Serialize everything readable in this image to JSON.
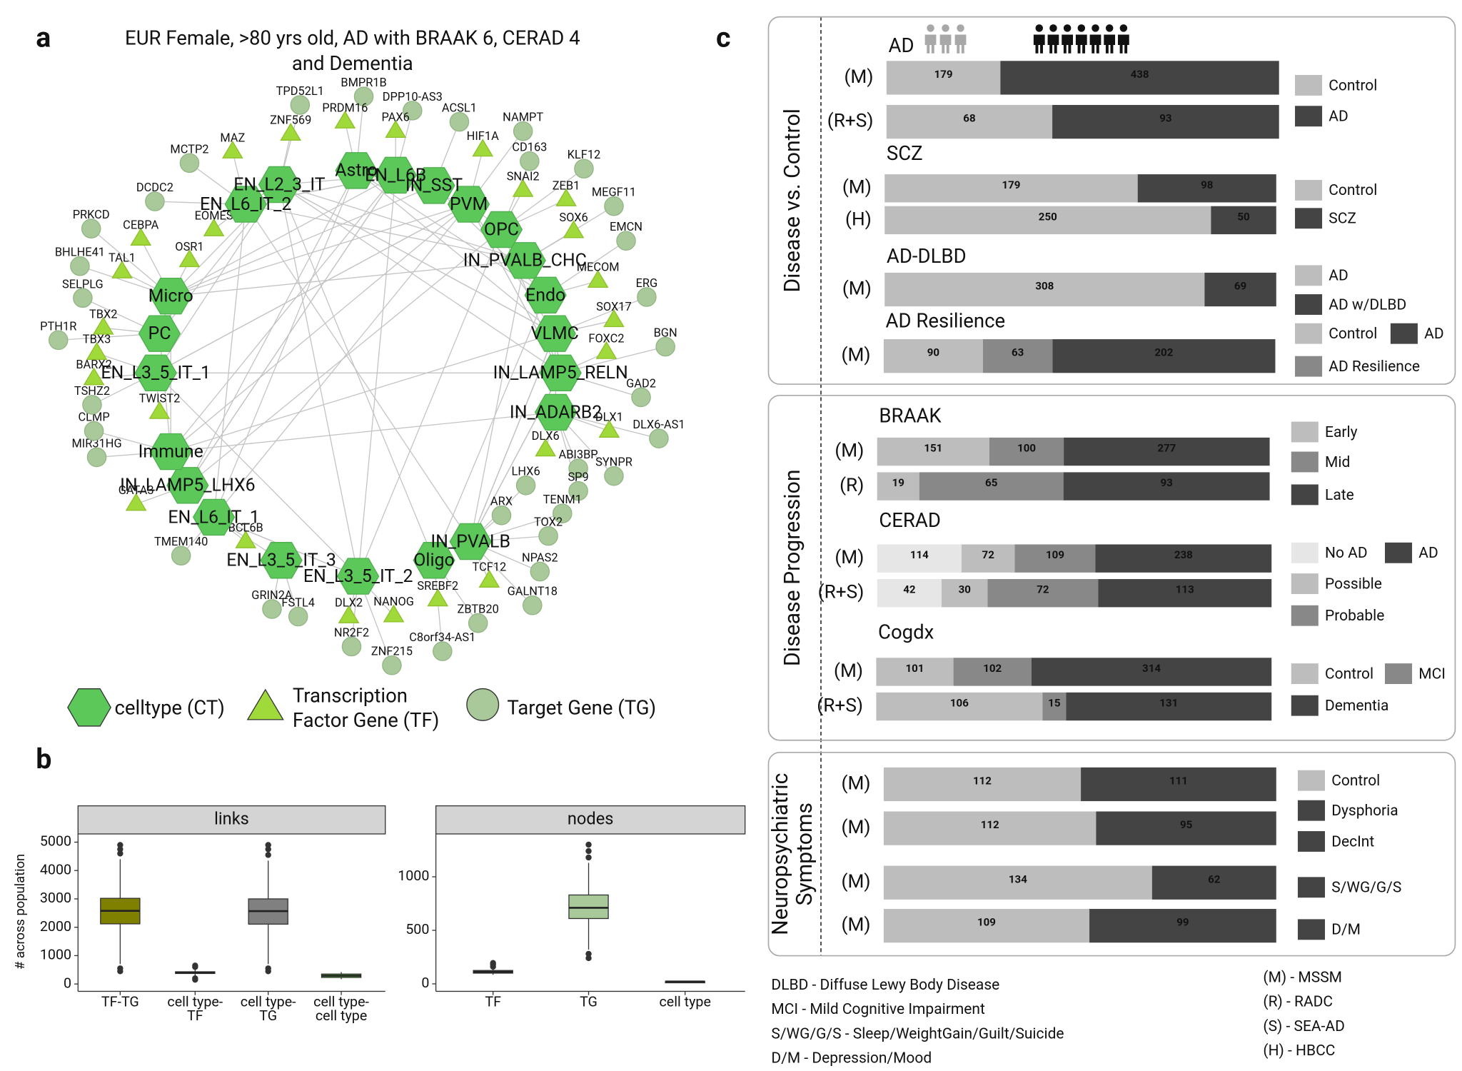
{
  "panels": {
    "a": {
      "letter": "a",
      "title": [
        "EUR Female, >80 yrs old, AD with BRAAK 6, CERAD 4",
        "and Dementia"
      ],
      "colors": {
        "CT": "#5cc85a",
        "TF": "#a0d93a",
        "TG": "#a9c99b"
      },
      "celltypes": [
        "EN_L6_IT_2",
        "EN_L2_3_IT",
        "Astro",
        "EN_L6B",
        "IN_SST",
        "PVM",
        "OPC",
        "IN_PVALB_CHC",
        "Endo",
        "VLMC",
        "IN_LAMP5_RELN",
        "IN_ADARB2",
        "IN_PVALB",
        "Oligo",
        "EN_L3_5_IT_2",
        "EN_L3_5_IT_3",
        "EN_L6_IT_1",
        "IN_LAMP5_LHX6",
        "Immune",
        "EN_L3_5_IT_1",
        "PC",
        "Micro"
      ],
      "genes": [
        {
          "label": "TPD52L1",
          "kind": "TG"
        },
        {
          "label": "BMPR1B",
          "kind": "TG"
        },
        {
          "label": "PRDM16",
          "kind": "TF"
        },
        {
          "label": "DPP10-AS3",
          "kind": "TG"
        },
        {
          "label": "PAX6",
          "kind": "TF"
        },
        {
          "label": "ACSL1",
          "kind": "TG"
        },
        {
          "label": "HIF1A",
          "kind": "TF"
        },
        {
          "label": "NAMPT",
          "kind": "TG"
        },
        {
          "label": "CD163",
          "kind": "TG"
        },
        {
          "label": "SNAI2",
          "kind": "TF"
        },
        {
          "label": "KLF12",
          "kind": "TG"
        },
        {
          "label": "ZEB1",
          "kind": "TF"
        },
        {
          "label": "MEGF11",
          "kind": "TG"
        },
        {
          "label": "SOX6",
          "kind": "TF"
        },
        {
          "label": "EMCN",
          "kind": "TG"
        },
        {
          "label": "MECOM",
          "kind": "TF"
        },
        {
          "label": "ERG",
          "kind": "TG"
        },
        {
          "label": "SOX17",
          "kind": "TF"
        },
        {
          "label": "FOXC2",
          "kind": "TF"
        },
        {
          "label": "BGN",
          "kind": "TG"
        },
        {
          "label": "GAD2",
          "kind": "TG"
        },
        {
          "label": "DLX1",
          "kind": "TF"
        },
        {
          "label": "DLX6-AS1",
          "kind": "TG"
        },
        {
          "label": "DLX6",
          "kind": "TF"
        },
        {
          "label": "ABI3BP",
          "kind": "TG"
        },
        {
          "label": "SYNPR",
          "kind": "TG"
        },
        {
          "label": "LHX6",
          "kind": "TG"
        },
        {
          "label": "SP9",
          "kind": "TG"
        },
        {
          "label": "TENM1",
          "kind": "TG"
        },
        {
          "label": "ARX",
          "kind": "TG"
        },
        {
          "label": "TOX2",
          "kind": "TG"
        },
        {
          "label": "NPAS2",
          "kind": "TG"
        },
        {
          "label": "TCF12",
          "kind": "TF"
        },
        {
          "label": "GALNT18",
          "kind": "TG"
        },
        {
          "label": "SREBF2",
          "kind": "TF"
        },
        {
          "label": "ZBTB20",
          "kind": "TG"
        },
        {
          "label": "NANOG",
          "kind": "TF"
        },
        {
          "label": "C8orf34-AS1",
          "kind": "TG"
        },
        {
          "label": "ZNF215",
          "kind": "TG"
        },
        {
          "label": "DLX2",
          "kind": "TF"
        },
        {
          "label": "NR2F2",
          "kind": "TG"
        },
        {
          "label": "FSTL4",
          "kind": "TG"
        },
        {
          "label": "GRIN2A",
          "kind": "TG"
        },
        {
          "label": "BCL6B",
          "kind": "TF"
        },
        {
          "label": "TMEM140",
          "kind": "TG"
        },
        {
          "label": "GATA3",
          "kind": "TF"
        },
        {
          "label": "MIR31HG",
          "kind": "TG"
        },
        {
          "label": "CLMP",
          "kind": "TG"
        },
        {
          "label": "TWIST2",
          "kind": "TF"
        },
        {
          "label": "TSHZ2",
          "kind": "TG"
        },
        {
          "label": "BARX2",
          "kind": "TF"
        },
        {
          "label": "TBX3",
          "kind": "TF"
        },
        {
          "label": "PTH1R",
          "kind": "TG"
        },
        {
          "label": "TBX2",
          "kind": "TF"
        },
        {
          "label": "SELPLG",
          "kind": "TG"
        },
        {
          "label": "TAL1",
          "kind": "TF"
        },
        {
          "label": "BHLHE41",
          "kind": "TG"
        },
        {
          "label": "PRKCD",
          "kind": "TG"
        },
        {
          "label": "CEBPA",
          "kind": "TF"
        },
        {
          "label": "OSR1",
          "kind": "TF"
        },
        {
          "label": "EOMES",
          "kind": "TF"
        },
        {
          "label": "DCDC2",
          "kind": "TG"
        },
        {
          "label": "MCTP2",
          "kind": "TG"
        },
        {
          "label": "MAZ",
          "kind": "TF"
        },
        {
          "label": "ZNF569",
          "kind": "TF"
        }
      ],
      "legend": [
        {
          "kind": "CT",
          "label": [
            "celltype (CT)"
          ]
        },
        {
          "kind": "TF",
          "label": [
            "Transcription",
            "Factor Gene (TF)"
          ]
        },
        {
          "kind": "TG",
          "label": [
            "Target Gene (TG)"
          ]
        }
      ]
    },
    "b": {
      "letter": "b",
      "ylabel": "# across population",
      "facets": [
        {
          "name": "links",
          "ylim": [
            -260,
            5290
          ],
          "yticks": [
            0,
            1000,
            2000,
            3000,
            4000,
            5000
          ],
          "boxes": [
            {
              "category": [
                "TF-TG"
              ],
              "color": "#7f7f00",
              "min": 700,
              "q1": 2120,
              "median": 2580,
              "q3": 3020,
              "max": 4400,
              "outliers": [
                450,
                550,
                4600,
                4750,
                4900
              ]
            },
            {
              "category": [
                "cell type-",
                "TF"
              ],
              "color": "#4d4d4d",
              "min": 260,
              "q1": 370,
              "median": 400,
              "q3": 430,
              "max": 540,
              "outliers": [
                150,
                200,
                600,
                650
              ]
            },
            {
              "category": [
                "cell type-",
                "TG"
              ],
              "color": "#808080",
              "min": 700,
              "q1": 2110,
              "median": 2570,
              "q3": 3000,
              "max": 4350,
              "outliers": [
                450,
                550,
                4550,
                4750,
                4900
              ]
            },
            {
              "category": [
                "cell type-",
                "cell type"
              ],
              "color": "#5ecf3a",
              "min": 170,
              "q1": 230,
              "median": 290,
              "q3": 350,
              "max": 420,
              "outliers": []
            }
          ]
        },
        {
          "name": "nodes",
          "ylim": [
            -70,
            1400
          ],
          "yticks": [
            0,
            500,
            1000
          ],
          "boxes": [
            {
              "category": [
                "TF"
              ],
              "color": "#4d4d4d",
              "min": 85,
              "q1": 100,
              "median": 112,
              "q3": 125,
              "max": 145,
              "outliers": [
                160,
                180,
                195
              ]
            },
            {
              "category": [
                "TG"
              ],
              "color": "#a9c99b",
              "min": 320,
              "q1": 610,
              "median": 710,
              "q3": 830,
              "max": 1130,
              "outliers": [
                240,
                280,
                1180,
                1240,
                1300
              ]
            },
            {
              "category": [
                "cell type"
              ],
              "color": "#444444",
              "min": 20,
              "q1": 21,
              "median": 22,
              "q3": 23,
              "max": 24,
              "outliers": []
            }
          ]
        }
      ]
    },
    "c": {
      "letter": "c",
      "sections": [
        {
          "title": [
            "Disease vs. Control"
          ],
          "groups": [
            {
              "name": "AD",
              "colors": [
                "#bdbdbd",
                "#444444"
              ],
              "bars": [
                {
                  "cohort": "(M)",
                  "values": [
                    179,
                    438
                  ]
                },
                {
                  "cohort": "(R+S)",
                  "values": [
                    68,
                    93
                  ]
                }
              ],
              "legend": [
                {
                  "label": "Control",
                  "color": "#bdbdbd"
                },
                {
                  "label": "AD",
                  "color": "#444444"
                }
              ]
            },
            {
              "name": "SCZ",
              "colors": [
                "#bdbdbd",
                "#444444"
              ],
              "bars": [
                {
                  "cohort": "(M)",
                  "values": [
                    179,
                    98
                  ]
                },
                {
                  "cohort": "(H)",
                  "values": [
                    250,
                    50
                  ]
                }
              ],
              "legend": [
                {
                  "label": "Control",
                  "color": "#bdbdbd"
                },
                {
                  "label": "SCZ",
                  "color": "#444444"
                }
              ]
            },
            {
              "name": "AD-DLBD",
              "colors": [
                "#bdbdbd",
                "#444444"
              ],
              "bars": [
                {
                  "cohort": "(M)",
                  "values": [
                    308,
                    69
                  ]
                }
              ],
              "legend": [
                {
                  "label": "AD",
                  "color": "#bdbdbd"
                },
                {
                  "label": "AD w/DLBD",
                  "color": "#444444"
                }
              ]
            },
            {
              "name": "AD Resilience",
              "colors": [
                "#bdbdbd",
                "#888888",
                "#444444"
              ],
              "bars": [
                {
                  "cohort": "(M)",
                  "values": [
                    90,
                    63,
                    202
                  ]
                }
              ],
              "legend": [
                {
                  "label": "Control",
                  "color": "#bdbdbd"
                },
                {
                  "label": "AD",
                  "color": "#444444"
                },
                {
                  "label": "AD Resilience",
                  "color": "#888888"
                }
              ]
            }
          ]
        },
        {
          "title": [
            "Disease Progression"
          ],
          "groups": [
            {
              "name": "BRAAK",
              "colors": [
                "#bdbdbd",
                "#888888",
                "#444444"
              ],
              "bars": [
                {
                  "cohort": "(M)",
                  "values": [
                    151,
                    100,
                    277
                  ]
                },
                {
                  "cohort": "(R)",
                  "values": [
                    19,
                    65,
                    93
                  ]
                }
              ],
              "legend": [
                {
                  "label": "Early",
                  "color": "#bdbdbd"
                },
                {
                  "label": "Mid",
                  "color": "#888888"
                },
                {
                  "label": "Late",
                  "color": "#444444"
                }
              ]
            },
            {
              "name": "CERAD",
              "colors": [
                "#e6e6e6",
                "#bdbdbd",
                "#888888",
                "#444444"
              ],
              "bars": [
                {
                  "cohort": "(M)",
                  "values": [
                    114,
                    72,
                    109,
                    238
                  ]
                },
                {
                  "cohort": "(R+S)",
                  "values": [
                    42,
                    30,
                    72,
                    113
                  ]
                }
              ],
              "legend": [
                {
                  "label": "No AD",
                  "color": "#e6e6e6"
                },
                {
                  "label": "AD",
                  "color": "#444444"
                },
                {
                  "label": "Possible",
                  "color": "#bdbdbd"
                },
                {
                  "label": "Probable",
                  "color": "#888888"
                }
              ]
            },
            {
              "name": "Cogdx",
              "colors": [
                "#bdbdbd",
                "#888888",
                "#444444"
              ],
              "bars": [
                {
                  "cohort": "(M)",
                  "values": [
                    101,
                    102,
                    314
                  ]
                },
                {
                  "cohort": "(R+S)",
                  "values": [
                    106,
                    15,
                    131
                  ]
                }
              ],
              "legend": [
                {
                  "label": "Control",
                  "color": "#bdbdbd"
                },
                {
                  "label": "MCI",
                  "color": "#888888"
                },
                {
                  "label": "Dementia",
                  "color": "#444444"
                }
              ]
            }
          ]
        },
        {
          "title": [
            "Neuropsychiatric",
            "Symptoms"
          ],
          "groups": [
            {
              "colors": [
                "#bdbdbd",
                "#444444"
              ],
              "bars": [
                {
                  "cohort": "(M)",
                  "values": [
                    112,
                    111
                  ]
                },
                {
                  "cohort": "(M)",
                  "values": [
                    112,
                    95
                  ]
                },
                {
                  "cohort": "(M)",
                  "values": [
                    134,
                    62
                  ]
                },
                {
                  "cohort": "(M)",
                  "values": [
                    109,
                    99
                  ]
                }
              ],
              "legend": [
                {
                  "label": "Control",
                  "color": "#bdbdbd"
                },
                {
                  "label": "Dysphoria",
                  "color": "#444444"
                },
                {
                  "label": "DecInt",
                  "color": "#444444"
                },
                {
                  "label": "S/WG/G/S",
                  "color": "#444444"
                },
                {
                  "label": "D/M",
                  "color": "#444444"
                }
              ]
            }
          ]
        }
      ],
      "abbreviations": [
        "DLBD - Diffuse Lewy Body Disease",
        "MCI - Mild Cognitive Impairment",
        "S/WG/G/S - Sleep/WeightGain/Guilt/Suicide",
        "D/M - Depression/Mood"
      ],
      "cohorts": [
        "(M) - MSSM",
        "(R) - RADC",
        "(S) - SEA-AD",
        "(H) - HBCC"
      ]
    }
  }
}
